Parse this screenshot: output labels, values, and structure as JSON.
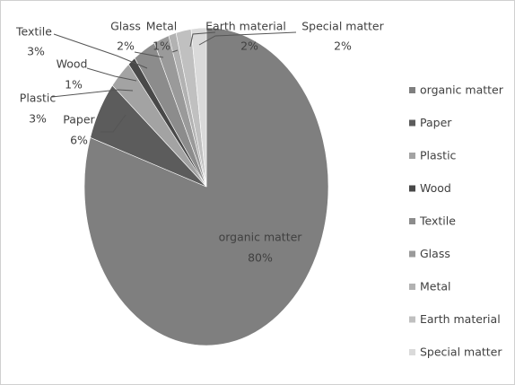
{
  "chart_data": {
    "type": "pie",
    "categories": [
      "organic matter",
      "Paper",
      "Plastic",
      "Wood",
      "Textile",
      "Glass",
      "Metal",
      "Earth material",
      "Special matter"
    ],
    "values": [
      80,
      6,
      3,
      1,
      3,
      2,
      1,
      2,
      2
    ],
    "value_labels": [
      "80%",
      "6%",
      "3%",
      "1%",
      "3%",
      "2%",
      "1%",
      "2%",
      "2%"
    ],
    "colors": [
      "#7f7f7f",
      "#5c5c5c",
      "#a3a3a3",
      "#484848",
      "#8c8c8c",
      "#9a9a9a",
      "#b2b2b2",
      "#c0c0c0",
      "#dadada"
    ],
    "legend": "right"
  }
}
